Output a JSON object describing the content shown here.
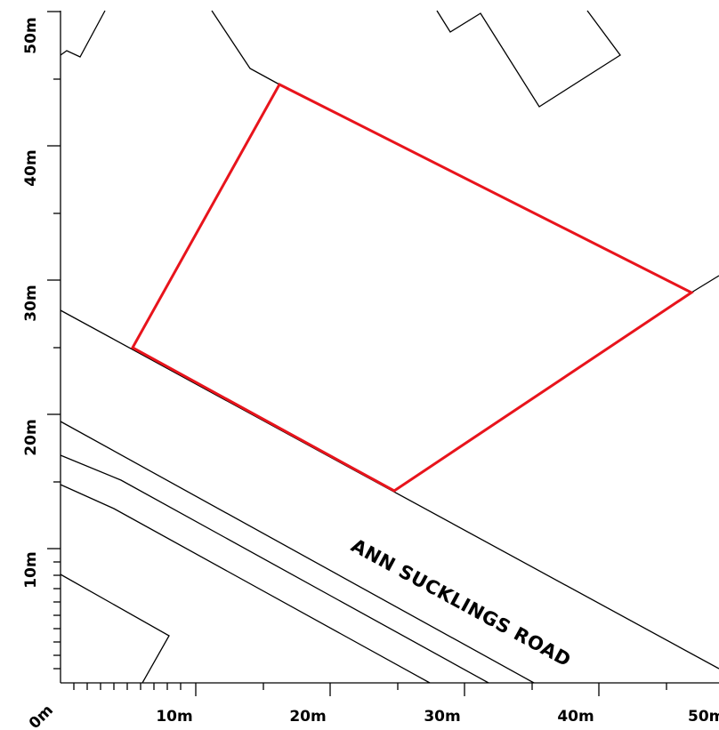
{
  "map": {
    "road_name": "ANN SUCKLINGS ROAD",
    "boundary_color": "#e8141c",
    "line_color": "#000000",
    "scale_unit": "m",
    "x_axis_labels": [
      "0m",
      "10m",
      "20m",
      "30m",
      "40m",
      "50m"
    ],
    "y_axis_labels": [
      "10m",
      "20m",
      "30m",
      "40m",
      "50m"
    ]
  }
}
